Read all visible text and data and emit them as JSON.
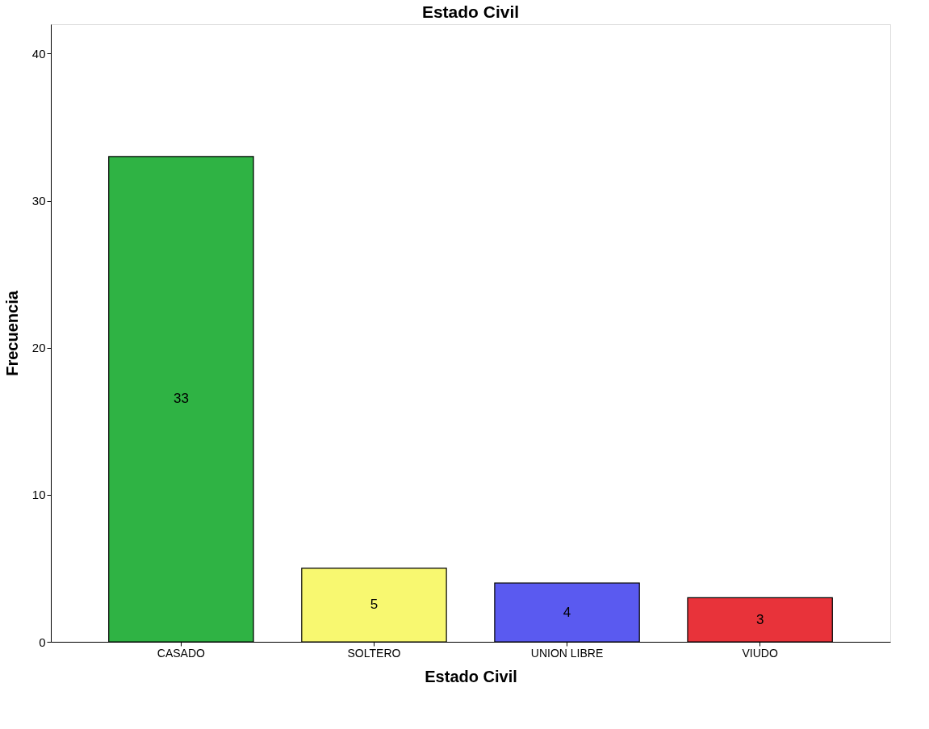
{
  "chart_data": {
    "type": "bar",
    "title": "Estado Civil",
    "xlabel": "Estado Civil",
    "ylabel": "Frecuencia",
    "categories": [
      "CASADO",
      "SOLTERO",
      "UNION LIBRE",
      "VIUDO"
    ],
    "values": [
      33,
      5,
      4,
      3
    ],
    "colors": [
      "#2fb344",
      "#f8f870",
      "#5a5af0",
      "#e8333a"
    ],
    "ylim": [
      0,
      42
    ],
    "yticks": [
      0,
      10,
      20,
      30,
      40
    ],
    "grid": false,
    "data_labels": true,
    "legend": false
  }
}
